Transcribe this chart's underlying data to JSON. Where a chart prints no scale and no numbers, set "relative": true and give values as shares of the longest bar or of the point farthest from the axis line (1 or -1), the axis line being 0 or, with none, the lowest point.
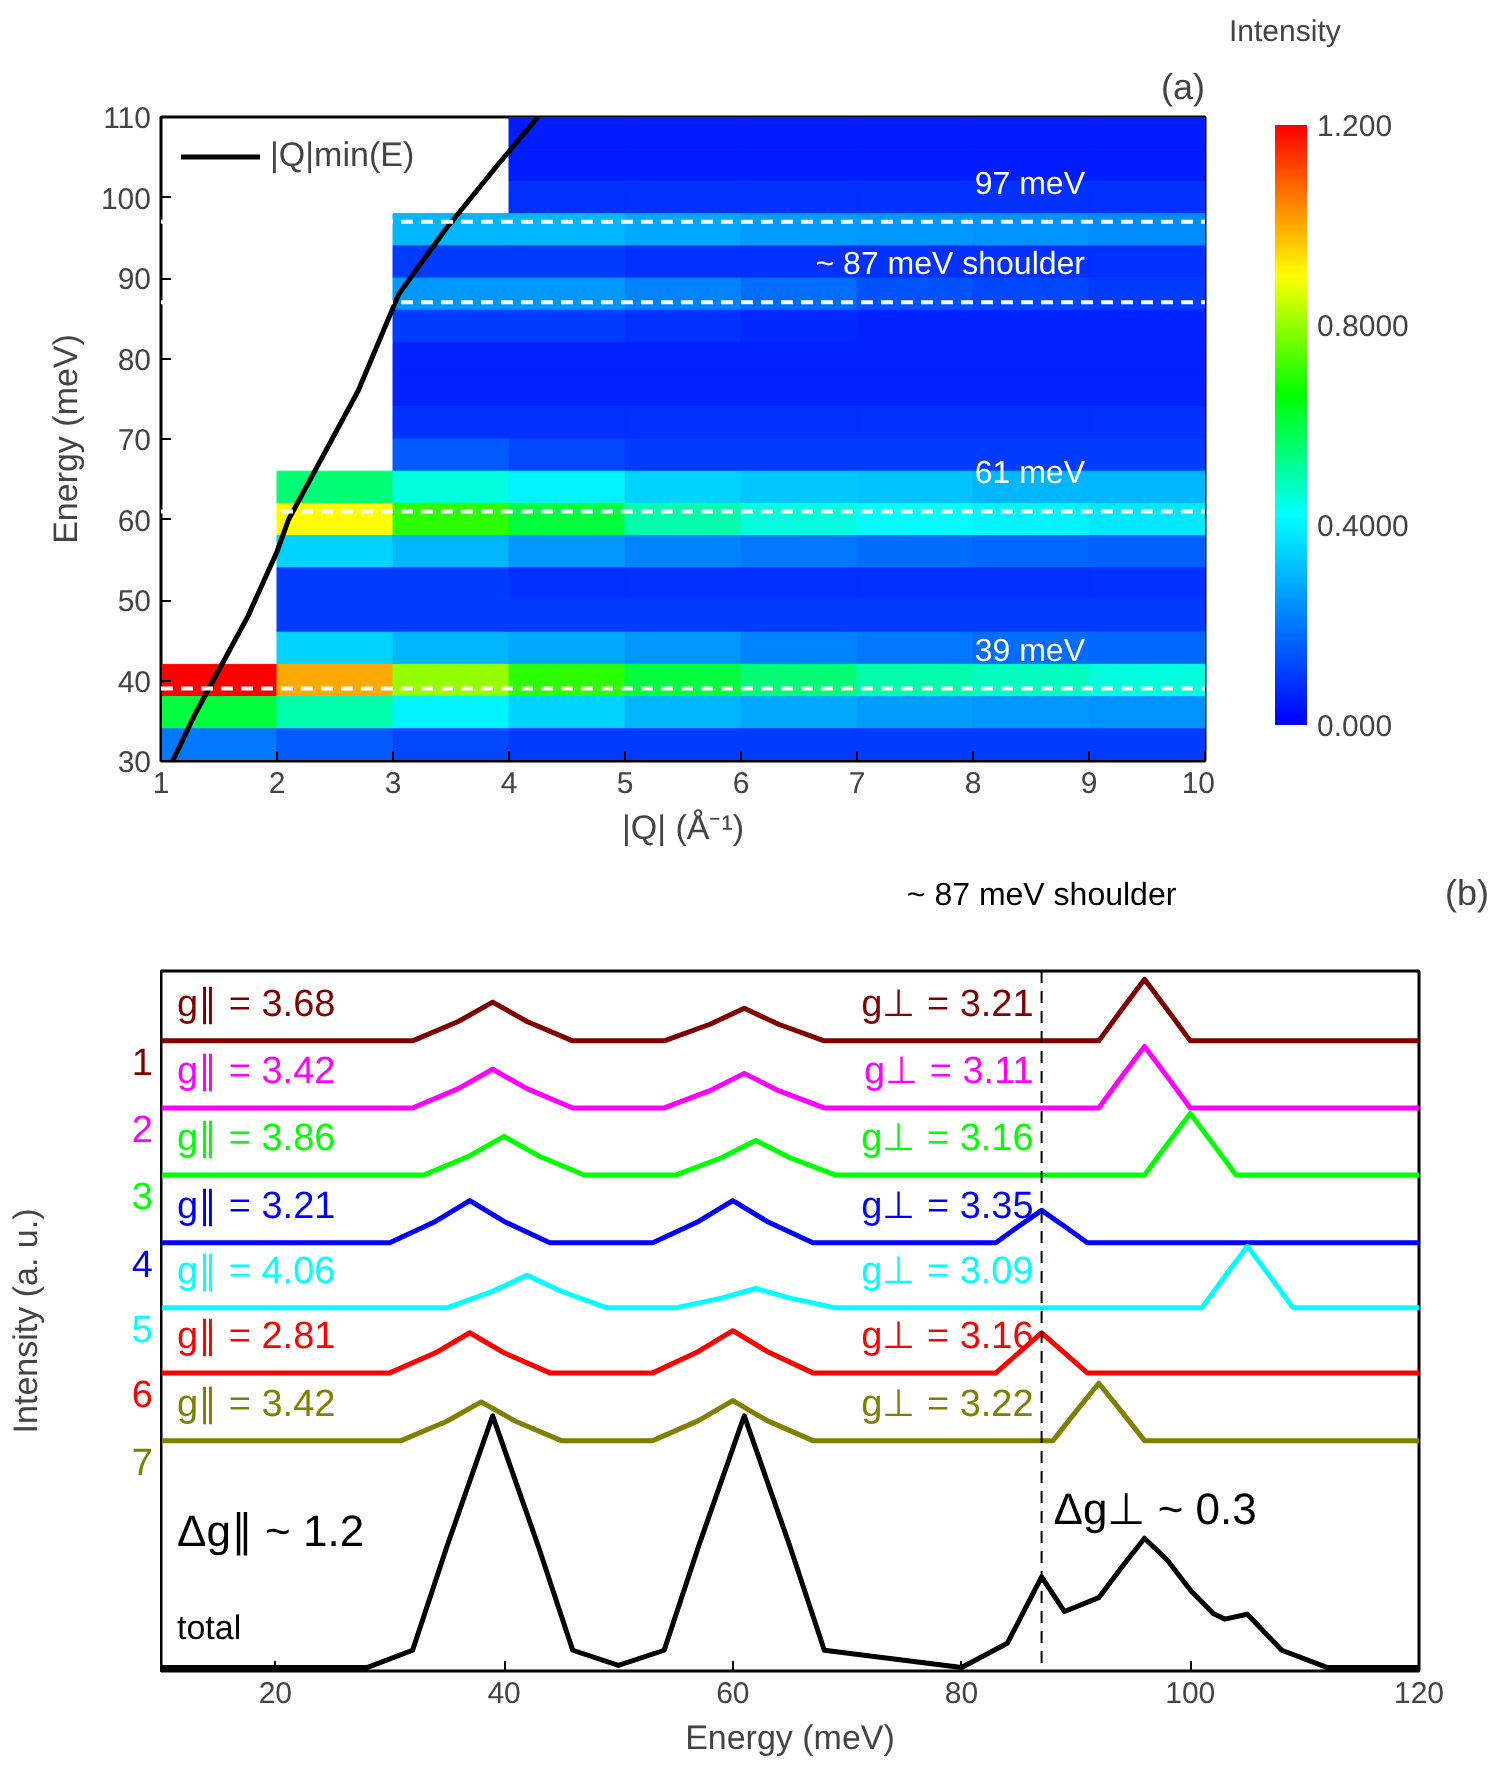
{
  "chart_data": [
    {
      "type": "heatmap",
      "title": "(a)",
      "xlabel": "|Q| (Å⁻¹)",
      "ylabel": "Energy (meV)",
      "clabel": "Intensity",
      "xlim": [
        1,
        10
      ],
      "xticks": [
        1,
        2,
        3,
        4,
        5,
        6,
        7,
        8,
        9,
        10
      ],
      "ylim": [
        30,
        110
      ],
      "yticks": [
        30,
        40,
        50,
        60,
        70,
        80,
        90,
        100,
        110
      ],
      "clim": [
        0,
        1.2
      ],
      "cticks": [
        {
          "value": 0,
          "label": "0.000"
        },
        {
          "value": 0.4,
          "label": "0.4000"
        },
        {
          "value": 0.8,
          "label": "0.8000"
        },
        {
          "value": 1.2,
          "label": "1.200"
        }
      ],
      "cells": [
        [
          null,
          null,
          null,
          0.05,
          0.05,
          0.05,
          0.05,
          0.05,
          0.05
        ],
        [
          null,
          null,
          null,
          0.05,
          0.05,
          0.05,
          0.05,
          0.05,
          0.05
        ],
        [
          null,
          null,
          null,
          0.08,
          0.08,
          0.08,
          0.08,
          0.08,
          0.08
        ],
        [
          null,
          null,
          0.3,
          0.3,
          0.28,
          0.26,
          0.25,
          0.24,
          0.23
        ],
        [
          null,
          null,
          0.1,
          0.1,
          0.08,
          0.08,
          0.08,
          0.08,
          0.08
        ],
        [
          null,
          null,
          0.25,
          0.25,
          0.22,
          0.18,
          0.14,
          0.12,
          0.1
        ],
        [
          null,
          null,
          0.1,
          0.1,
          0.08,
          0.07,
          0.06,
          0.06,
          0.06
        ],
        [
          null,
          null,
          0.06,
          0.06,
          0.06,
          0.06,
          0.06,
          0.06,
          0.06
        ],
        [
          null,
          null,
          0.06,
          0.06,
          0.06,
          0.06,
          0.06,
          0.06,
          0.06
        ],
        [
          null,
          null,
          0.08,
          0.08,
          0.08,
          0.08,
          0.08,
          0.08,
          0.08
        ],
        [
          null,
          null,
          0.15,
          0.12,
          0.1,
          0.1,
          0.1,
          0.1,
          0.1
        ],
        [
          null,
          0.55,
          0.45,
          0.4,
          0.35,
          0.33,
          0.32,
          0.3,
          0.3
        ],
        [
          null,
          0.9,
          0.7,
          0.6,
          0.5,
          0.45,
          0.42,
          0.4,
          0.38
        ],
        [
          null,
          0.35,
          0.3,
          0.25,
          0.22,
          0.2,
          0.18,
          0.17,
          0.16
        ],
        [
          null,
          0.1,
          0.1,
          0.08,
          0.08,
          0.08,
          0.08,
          0.08,
          0.08
        ],
        [
          null,
          0.1,
          0.1,
          0.1,
          0.1,
          0.1,
          0.1,
          0.1,
          0.1
        ],
        [
          null,
          0.35,
          0.3,
          0.28,
          0.25,
          0.22,
          0.2,
          0.18,
          0.17
        ],
        [
          1.2,
          1.0,
          0.8,
          0.7,
          0.6,
          0.55,
          0.5,
          0.48,
          0.45
        ],
        [
          0.6,
          0.5,
          0.4,
          0.35,
          0.3,
          0.28,
          0.26,
          0.25,
          0.24
        ],
        [
          0.2,
          0.15,
          0.12,
          0.1,
          0.1,
          0.1,
          0.1,
          0.1,
          0.1
        ]
      ],
      "series": [
        {
          "name": "|Q|min(E)",
          "type": "line",
          "color": "#000000",
          "x": [
            1.1,
            1.3,
            1.45,
            1.75,
            2.0,
            2.1,
            2.4,
            2.7,
            3.05,
            3.45,
            3.9,
            4.25
          ],
          "values": [
            30,
            36,
            40,
            48,
            56,
            60,
            68,
            76,
            88,
            96,
            104,
            110
          ]
        }
      ],
      "ref_lines": [
        {
          "axis": "y",
          "value": 39,
          "label": "39 meV",
          "color": "#ffffff",
          "line_style": "dashed"
        },
        {
          "axis": "y",
          "value": 61,
          "label": "61 meV",
          "color": "#ffffff",
          "line_style": "dashed"
        },
        {
          "axis": "y",
          "value": 87,
          "label": "~ 87 meV shoulder",
          "color": "#ffffff",
          "line_style": "dashed"
        },
        {
          "axis": "y",
          "value": 97,
          "label": "97 meV",
          "color": "#ffffff",
          "line_style": "dashed"
        }
      ],
      "legend": "top left",
      "grid": false
    },
    {
      "type": "line",
      "title": "(b)",
      "xlabel": "Energy (meV)",
      "ylabel": "Intensity (a. u.)",
      "relative": true,
      "xlim": [
        10,
        120
      ],
      "xticks": [
        20,
        40,
        60,
        80,
        100,
        120
      ],
      "tick_labels": "x",
      "grid": false,
      "legend": false,
      "series": [
        {
          "name": "1",
          "color": "#800000",
          "x": [
            10,
            32,
            36,
            39,
            42,
            46,
            54,
            58,
            61,
            64,
            68,
            92,
            94,
            96,
            98,
            100,
            120
          ],
          "values": [
            0.911,
            0.911,
            0.939,
            0.967,
            0.939,
            0.911,
            0.911,
            0.935,
            0.958,
            0.935,
            0.911,
            0.911,
            0.956,
            1.0,
            0.956,
            0.911,
            0.911
          ]
        },
        {
          "name": "2",
          "color": "#ff00ff",
          "x": [
            10,
            32,
            36,
            39,
            42,
            46,
            54,
            58,
            61,
            64,
            68,
            92,
            94,
            96,
            98,
            100,
            120
          ],
          "values": [
            0.814,
            0.814,
            0.842,
            0.87,
            0.842,
            0.814,
            0.814,
            0.839,
            0.864,
            0.839,
            0.814,
            0.814,
            0.859,
            0.903,
            0.859,
            0.814,
            0.814
          ]
        },
        {
          "name": "3",
          "color": "#00ff00",
          "x": [
            10,
            33,
            37,
            40,
            43,
            47,
            55,
            59,
            62,
            65,
            69,
            96,
            98,
            100,
            102,
            104,
            120
          ],
          "values": [
            0.717,
            0.717,
            0.745,
            0.773,
            0.745,
            0.717,
            0.717,
            0.742,
            0.767,
            0.742,
            0.717,
            0.717,
            0.762,
            0.806,
            0.762,
            0.717,
            0.717
          ]
        },
        {
          "name": "4",
          "color": "#0000ff",
          "x": [
            10,
            30,
            34,
            37,
            40,
            44,
            53,
            57,
            60,
            63,
            67,
            83,
            85,
            87,
            89,
            91,
            120
          ],
          "values": [
            0.619,
            0.619,
            0.65,
            0.68,
            0.65,
            0.619,
            0.619,
            0.65,
            0.68,
            0.65,
            0.619,
            0.619,
            0.643,
            0.666,
            0.643,
            0.619,
            0.619
          ]
        },
        {
          "name": "5",
          "color": "#00ffff",
          "x": [
            10,
            35,
            39,
            42,
            45,
            49,
            55,
            59,
            62,
            65,
            69,
            101,
            103,
            105,
            107,
            109,
            120
          ],
          "values": [
            0.525,
            0.525,
            0.549,
            0.572,
            0.549,
            0.525,
            0.525,
            0.539,
            0.553,
            0.539,
            0.525,
            0.525,
            0.57,
            0.614,
            0.57,
            0.525,
            0.525
          ]
        },
        {
          "name": "6",
          "color": "#ff0000",
          "x": [
            10,
            30,
            34,
            37,
            40,
            44,
            53,
            57,
            60,
            63,
            67,
            83,
            85,
            87,
            89,
            91,
            120
          ],
          "values": [
            0.431,
            0.431,
            0.46,
            0.489,
            0.46,
            0.431,
            0.431,
            0.462,
            0.492,
            0.462,
            0.431,
            0.431,
            0.46,
            0.489,
            0.46,
            0.431,
            0.431
          ]
        },
        {
          "name": "7",
          "color": "#808000",
          "x": [
            10,
            31,
            35,
            38,
            41,
            45,
            53,
            57,
            60,
            63,
            67,
            88,
            90,
            92,
            94,
            96,
            120
          ],
          "values": [
            0.333,
            0.333,
            0.361,
            0.389,
            0.361,
            0.333,
            0.333,
            0.362,
            0.391,
            0.362,
            0.333,
            0.333,
            0.375,
            0.416,
            0.375,
            0.333,
            0.333
          ]
        },
        {
          "name": "total",
          "color": "#000000",
          "x": [
            10,
            28,
            32,
            35,
            39,
            43,
            46,
            50,
            54,
            57,
            61,
            65,
            68,
            80,
            84,
            87,
            89,
            92,
            94,
            96,
            98,
            100,
            102,
            103,
            105,
            108,
            112,
            120
          ],
          "values": [
            0.005,
            0.005,
            0.03,
            0.18,
            0.369,
            0.18,
            0.03,
            0.008,
            0.03,
            0.18,
            0.369,
            0.18,
            0.03,
            0.005,
            0.04,
            0.136,
            0.086,
            0.106,
            0.15,
            0.192,
            0.16,
            0.117,
            0.083,
            0.075,
            0.082,
            0.03,
            0.005,
            0.005
          ]
        }
      ],
      "ref_lines": [
        {
          "axis": "x",
          "value": 87,
          "label": "~ 87 meV shoulder",
          "color": "#000000",
          "line_style": "dashed"
        }
      ],
      "annotations": [
        "g∥ = 3.68",
        "g⊥ = 3.21",
        "g∥ = 3.42",
        "g⊥ = 3.11",
        "g∥ = 3.86",
        "g⊥ = 3.16",
        "g∥ = 3.21",
        "g⊥ = 3.35",
        "g∥ = 4.06",
        "g⊥ = 3.09",
        "g∥ = 2.81",
        "g⊥ = 3.16",
        "g∥ = 3.42",
        "g⊥ = 3.22",
        "Δg∥ ~ 1.2",
        "Δg⊥ ~ 0.3"
      ]
    }
  ]
}
